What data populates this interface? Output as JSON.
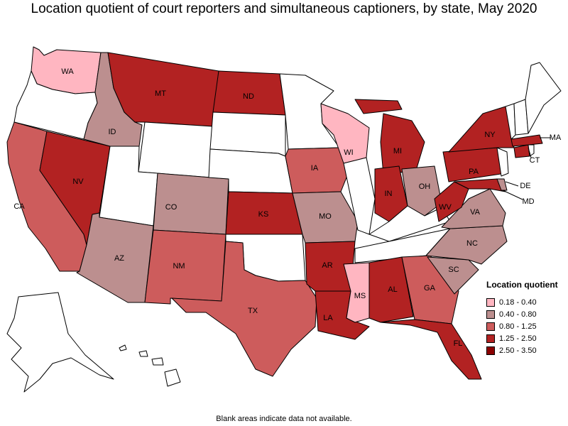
{
  "title": "Location quotient of court reporters and simultaneous captioners, by state, May 2020",
  "footnote": "Blank areas indicate data not available.",
  "legend": {
    "title": "Location quotient",
    "items": [
      {
        "label": "0.18 - 0.40",
        "color": "#ffb6c1"
      },
      {
        "label": "0.40 - 0.80",
        "color": "#bc8f8f"
      },
      {
        "label": "0.80 - 1.25",
        "color": "#cd5c5c"
      },
      {
        "label": "1.25 - 2.50",
        "color": "#b22222"
      },
      {
        "label": "2.50 - 3.50",
        "color": "#8b0000"
      }
    ]
  },
  "states": [
    {
      "abbr": "WA",
      "bin": 0,
      "label_visible": true
    },
    {
      "abbr": "OR",
      "bin": null,
      "label_visible": false
    },
    {
      "abbr": "CA",
      "bin": 2,
      "label_visible": true
    },
    {
      "abbr": "NV",
      "bin": 3,
      "label_visible": true
    },
    {
      "abbr": "ID",
      "bin": 1,
      "label_visible": true
    },
    {
      "abbr": "MT",
      "bin": 3,
      "label_visible": true
    },
    {
      "abbr": "WY",
      "bin": null,
      "label_visible": false
    },
    {
      "abbr": "UT",
      "bin": null,
      "label_visible": false
    },
    {
      "abbr": "AZ",
      "bin": 1,
      "label_visible": true
    },
    {
      "abbr": "CO",
      "bin": 1,
      "label_visible": true
    },
    {
      "abbr": "NM",
      "bin": 2,
      "label_visible": true
    },
    {
      "abbr": "ND",
      "bin": 3,
      "label_visible": true
    },
    {
      "abbr": "SD",
      "bin": null,
      "label_visible": false
    },
    {
      "abbr": "NE",
      "bin": null,
      "label_visible": false
    },
    {
      "abbr": "KS",
      "bin": 3,
      "label_visible": true
    },
    {
      "abbr": "OK",
      "bin": null,
      "label_visible": false
    },
    {
      "abbr": "TX",
      "bin": 2,
      "label_visible": true
    },
    {
      "abbr": "MN",
      "bin": null,
      "label_visible": false
    },
    {
      "abbr": "IA",
      "bin": 2,
      "label_visible": true
    },
    {
      "abbr": "MO",
      "bin": 1,
      "label_visible": true
    },
    {
      "abbr": "AR",
      "bin": 3,
      "label_visible": true
    },
    {
      "abbr": "LA",
      "bin": 3,
      "label_visible": true
    },
    {
      "abbr": "WI",
      "bin": 0,
      "label_visible": true
    },
    {
      "abbr": "IL",
      "bin": null,
      "label_visible": false
    },
    {
      "abbr": "MI",
      "bin": 3,
      "label_visible": true
    },
    {
      "abbr": "IN",
      "bin": 3,
      "label_visible": true
    },
    {
      "abbr": "OH",
      "bin": 1,
      "label_visible": true
    },
    {
      "abbr": "KY",
      "bin": null,
      "label_visible": false
    },
    {
      "abbr": "TN",
      "bin": null,
      "label_visible": false
    },
    {
      "abbr": "MS",
      "bin": 0,
      "label_visible": true
    },
    {
      "abbr": "AL",
      "bin": 3,
      "label_visible": true
    },
    {
      "abbr": "GA",
      "bin": 2,
      "label_visible": true
    },
    {
      "abbr": "FL",
      "bin": 3,
      "label_visible": true
    },
    {
      "abbr": "SC",
      "bin": 1,
      "label_visible": true
    },
    {
      "abbr": "NC",
      "bin": 1,
      "label_visible": true
    },
    {
      "abbr": "VA",
      "bin": 1,
      "label_visible": true
    },
    {
      "abbr": "WV",
      "bin": 3,
      "label_visible": true
    },
    {
      "abbr": "MD",
      "bin": 3,
      "label_visible": true
    },
    {
      "abbr": "DE",
      "bin": 1,
      "label_visible": true
    },
    {
      "abbr": "PA",
      "bin": 3,
      "label_visible": true
    },
    {
      "abbr": "NJ",
      "bin": null,
      "label_visible": false
    },
    {
      "abbr": "NY",
      "bin": 3,
      "label_visible": true
    },
    {
      "abbr": "CT",
      "bin": 3,
      "label_visible": true
    },
    {
      "abbr": "RI",
      "bin": null,
      "label_visible": false
    },
    {
      "abbr": "MA",
      "bin": 3,
      "label_visible": true
    },
    {
      "abbr": "VT",
      "bin": null,
      "label_visible": false
    },
    {
      "abbr": "NH",
      "bin": null,
      "label_visible": false
    },
    {
      "abbr": "ME",
      "bin": null,
      "label_visible": false
    },
    {
      "abbr": "AK",
      "bin": null,
      "label_visible": false
    },
    {
      "abbr": "HI",
      "bin": null,
      "label_visible": false
    }
  ]
}
